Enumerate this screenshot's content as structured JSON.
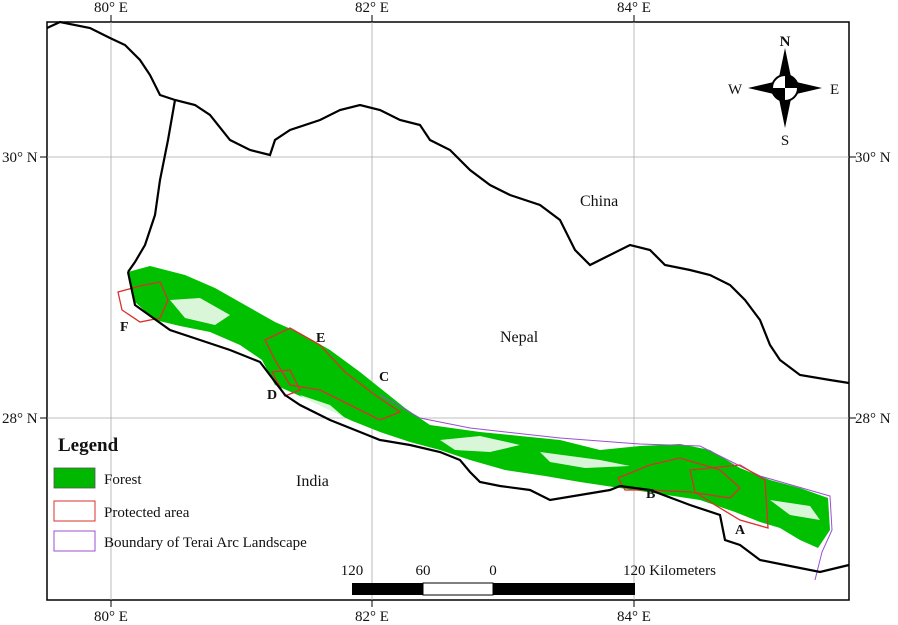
{
  "graticule": {
    "longitudes": [
      "80° E",
      "82° E",
      "84° E"
    ],
    "latitudes": [
      "30° N",
      "28° N"
    ]
  },
  "places": {
    "china": "China",
    "nepal": "Nepal",
    "india": "India"
  },
  "protected_area_labels": [
    "A",
    "B",
    "C",
    "D",
    "E",
    "F"
  ],
  "compass": {
    "n": "N",
    "s": "S",
    "e": "E",
    "w": "W"
  },
  "legend": {
    "title": "Legend",
    "items": [
      {
        "label": "Forest",
        "color": "#00b800"
      },
      {
        "label": "Protected area",
        "color": "#d9302c"
      },
      {
        "label": "Boundary of Terai Arc Landscape",
        "color": "#9b4fd0"
      }
    ]
  },
  "scale_bar": {
    "labels": [
      "120",
      "60",
      "0",
      "120 Kilometers"
    ]
  }
}
